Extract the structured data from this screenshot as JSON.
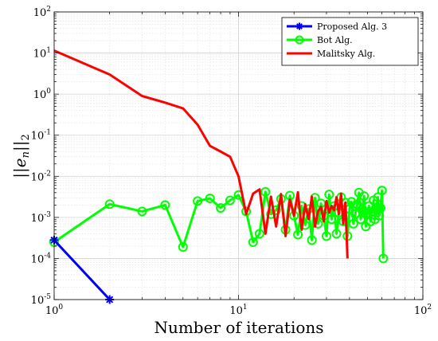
{
  "chart_data": {
    "type": "line",
    "title": "",
    "xlabel": "Number of iterations",
    "ylabel": "||e_n||_2",
    "xscale": "log",
    "yscale": "log",
    "xlim": [
      1,
      100
    ],
    "ylim": [
      1e-05,
      100
    ],
    "grid": "on (major and minor)",
    "legend_position": "top-right",
    "x_ticks": [
      {
        "value": 1,
        "base": "10",
        "exp": "0"
      },
      {
        "value": 10,
        "base": "10",
        "exp": "1"
      },
      {
        "value": 100,
        "base": "10",
        "exp": "2"
      }
    ],
    "y_ticks": [
      {
        "value": 1e-05,
        "base": "10",
        "exp": "-5"
      },
      {
        "value": 0.0001,
        "base": "10",
        "exp": "-4"
      },
      {
        "value": 0.001,
        "base": "10",
        "exp": "-3"
      },
      {
        "value": 0.01,
        "base": "10",
        "exp": "-2"
      },
      {
        "value": 0.1,
        "base": "10",
        "exp": "-1"
      },
      {
        "value": 1,
        "base": "10",
        "exp": "0"
      },
      {
        "value": 10,
        "base": "10",
        "exp": "1"
      },
      {
        "value": 100,
        "base": "10",
        "exp": "2"
      }
    ],
    "series": [
      {
        "name": "Proposed Alg. 3",
        "color": "#0000ff",
        "marker": "asterisk",
        "x": [
          1,
          2
        ],
        "y": [
          0.00028,
          1e-05
        ]
      },
      {
        "name": "Bot Alg.",
        "color": "#00ff00",
        "marker": "circle",
        "x": [
          1,
          2,
          3,
          4,
          5,
          6,
          7,
          8,
          9,
          10,
          11,
          12,
          13,
          14,
          15,
          16,
          17,
          18,
          19,
          20,
          21,
          22,
          23,
          24,
          25,
          26,
          27,
          28,
          29,
          30,
          31,
          32,
          33,
          34,
          35,
          36,
          37,
          38,
          39,
          40,
          41,
          42,
          43,
          44,
          45,
          46,
          47,
          48,
          49,
          50,
          51,
          52,
          53,
          54,
          55,
          56,
          57,
          58,
          59,
          60,
          61
        ],
        "y": [
          0.00025,
          0.0021,
          0.0014,
          0.002,
          0.00019,
          0.0025,
          0.0029,
          0.0017,
          0.0026,
          0.0035,
          0.0014,
          0.00025,
          0.0004,
          0.0042,
          0.0012,
          0.0015,
          0.0028,
          0.0005,
          0.0034,
          0.0011,
          0.00038,
          0.0019,
          0.00065,
          0.0016,
          0.00028,
          0.003,
          0.0007,
          0.0022,
          0.0011,
          0.00035,
          0.0036,
          0.0009,
          0.0019,
          0.0004,
          0.0013,
          0.0031,
          0.0008,
          0.0023,
          0.00035,
          0.0016,
          0.0024,
          0.0007,
          0.0012,
          0.0021,
          0.004,
          0.0009,
          0.0016,
          0.0033,
          0.0006,
          0.0013,
          0.0019,
          0.0008,
          0.0014,
          0.0026,
          0.0009,
          0.0015,
          0.0031,
          0.0011,
          0.0017,
          0.0045,
          0.0001
        ]
      },
      {
        "name": "Malitsky Alg.",
        "color": "#ff0000",
        "marker": "none",
        "x": [
          1,
          2,
          3,
          4,
          5,
          6,
          7,
          8,
          9,
          10,
          11,
          12,
          13,
          14,
          15,
          16,
          17,
          18,
          19,
          20,
          21,
          22,
          23,
          24,
          25,
          26,
          27,
          28,
          29,
          30,
          31,
          32,
          33,
          34,
          35,
          36,
          37,
          38,
          39
        ],
        "y": [
          11.5,
          3.0,
          0.9,
          0.62,
          0.45,
          0.18,
          0.055,
          0.04,
          0.03,
          0.01,
          0.0012,
          0.0038,
          0.0048,
          0.0004,
          0.0032,
          0.0006,
          0.0037,
          0.00035,
          0.0027,
          0.0011,
          0.0041,
          0.0005,
          0.0021,
          0.0009,
          0.0032,
          0.0006,
          0.0014,
          0.0018,
          0.0008,
          0.0025,
          0.0013,
          0.0019,
          0.0015,
          0.0031,
          0.0012,
          0.0038,
          0.0007,
          0.0023,
          0.0001
        ]
      }
    ]
  }
}
